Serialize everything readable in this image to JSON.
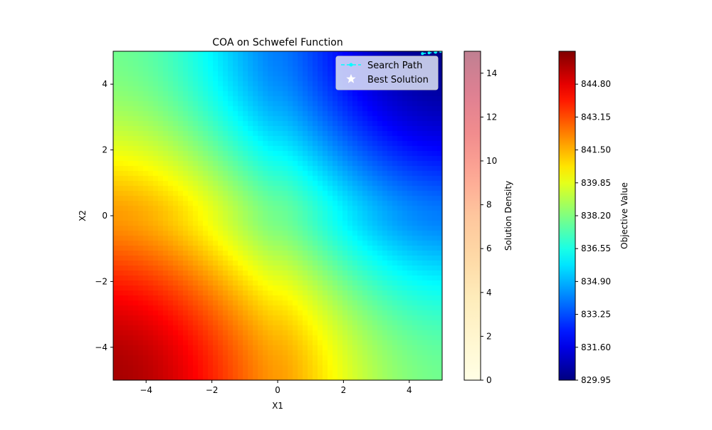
{
  "chart_data": {
    "type": "heatmap",
    "title": "COA on Schwefel Function",
    "xlabel": "X1",
    "ylabel": "X2",
    "xlim": [
      -5,
      5
    ],
    "ylim": [
      -5,
      5
    ],
    "x_ticks": [
      -4,
      -2,
      0,
      2,
      4
    ],
    "y_ticks": [
      -4,
      -2,
      0,
      2,
      4
    ],
    "x_tick_labels": [
      "−4",
      "−2",
      "0",
      "2",
      "4"
    ],
    "y_tick_labels": [
      "−4",
      "−2",
      "0",
      "2",
      "4"
    ],
    "grid": false,
    "surface": {
      "function": "Schwefel",
      "colormap": "jet",
      "vmin": 829.95,
      "vmax": 846.45
    },
    "legend": {
      "placement": "top-right",
      "entries": [
        {
          "label": "Search Path",
          "color": "#00ffff",
          "style": "dashed-line-dot-marker"
        },
        {
          "label": "Best Solution",
          "color": "#ffffff",
          "style": "star"
        }
      ]
    },
    "search_path": {
      "x": [
        4.4,
        4.6,
        4.8,
        4.95
      ],
      "y": [
        4.93,
        4.95,
        4.97,
        5.0
      ]
    },
    "colorbars": [
      {
        "label": "Solution Density",
        "colormap": "YlOrRd",
        "alpha": 0.5,
        "range": [
          0,
          15
        ],
        "ticks": [
          0,
          2,
          4,
          6,
          8,
          10,
          12,
          14
        ],
        "tick_labels": [
          "0",
          "2",
          "4",
          "6",
          "8",
          "10",
          "12",
          "14"
        ]
      },
      {
        "label": "Objective Value",
        "colormap": "jet",
        "range": [
          829.95,
          846.45
        ],
        "ticks": [
          829.95,
          831.6,
          833.25,
          834.9,
          836.55,
          838.2,
          839.85,
          841.5,
          843.15,
          844.8
        ],
        "tick_labels": [
          "829.95",
          "831.60",
          "833.25",
          "834.90",
          "836.55",
          "838.20",
          "839.85",
          "841.50",
          "843.15",
          "844.80"
        ]
      }
    ]
  }
}
